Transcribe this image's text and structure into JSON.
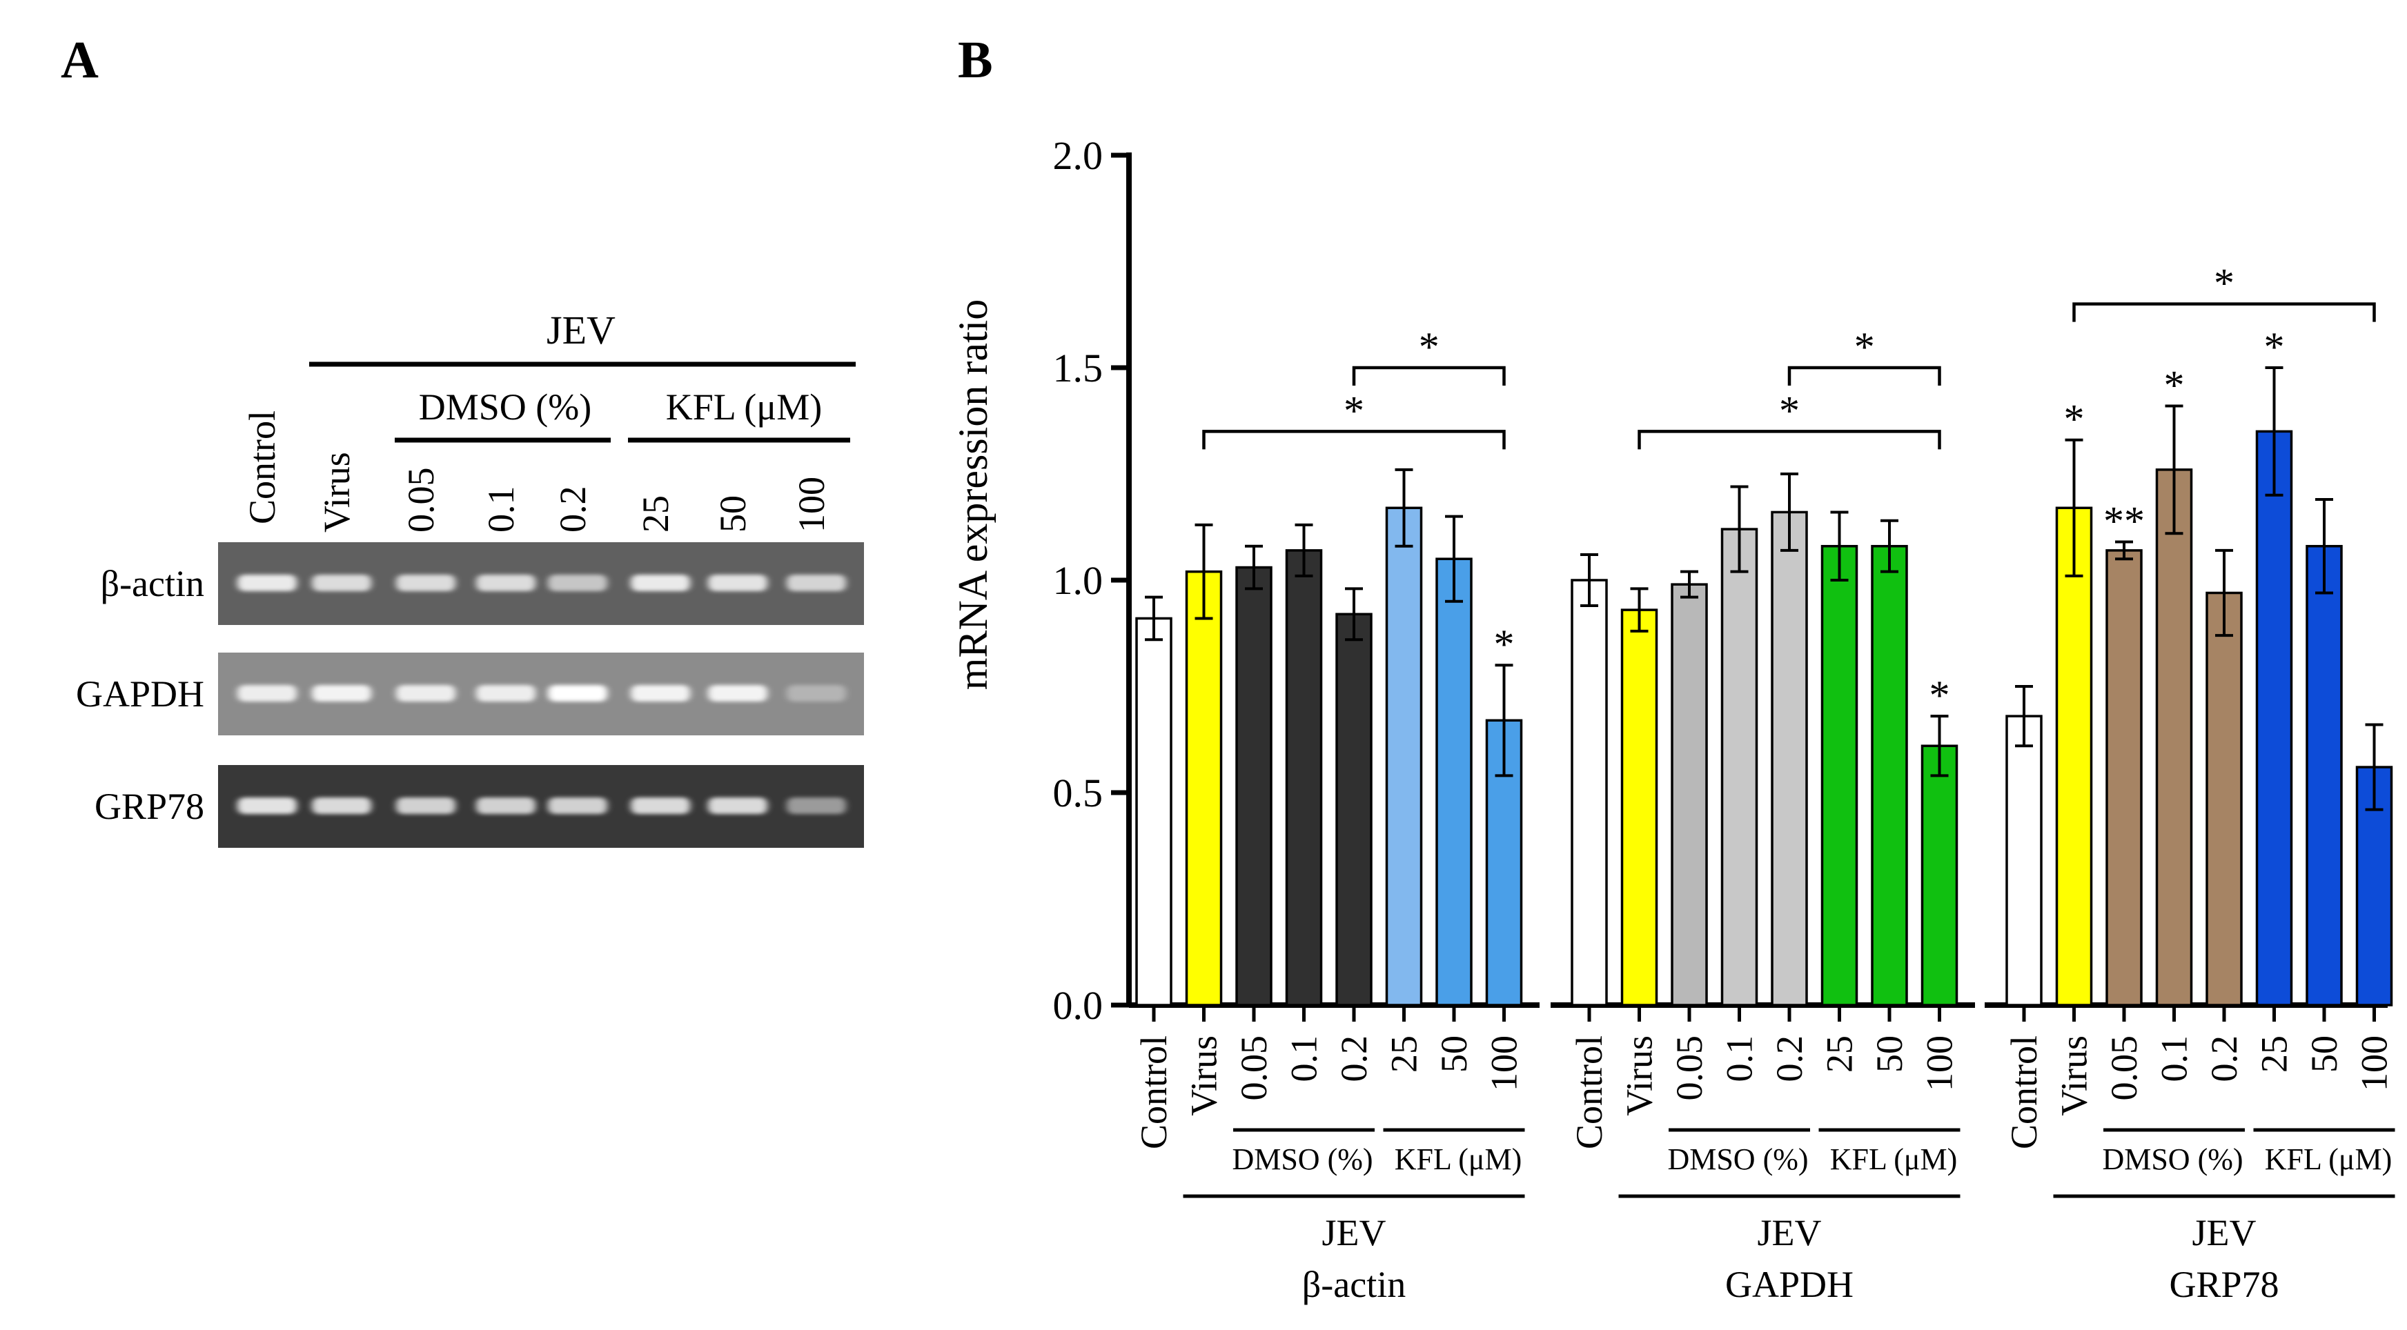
{
  "panel_a": {
    "label": "A",
    "jev": "JEV",
    "dmso": "DMSO (%)",
    "kfl": "KFL (μM)",
    "lanes": [
      "Control",
      "Virus",
      "0.05",
      "0.1",
      "0.2",
      "25",
      "50",
      "100"
    ],
    "rows": [
      {
        "label": "β-actin",
        "bg": "#606060",
        "band": "#f2f2f2",
        "intensity": [
          0.95,
          0.85,
          0.85,
          0.85,
          0.7,
          0.95,
          0.9,
          0.8
        ]
      },
      {
        "label": "GAPDH",
        "bg": "#8c8c8c",
        "band": "#ffffff",
        "intensity": [
          0.85,
          0.9,
          0.85,
          0.85,
          1.0,
          0.9,
          0.9,
          0.35
        ]
      },
      {
        "label": "GRP78",
        "bg": "#383838",
        "band": "#ececec",
        "intensity": [
          0.95,
          0.9,
          0.85,
          0.85,
          0.85,
          0.9,
          0.9,
          0.55
        ]
      }
    ]
  },
  "panel_b": {
    "label": "B",
    "chart_data": {
      "type": "bar",
      "ylabel": "mRNA expression ratio",
      "ylim": [
        0.0,
        2.0
      ],
      "yticks": [
        "0.0",
        "0.5",
        "1.0",
        "1.5",
        "2.0"
      ],
      "categories": [
        "Control",
        "Virus",
        "0.05",
        "0.1",
        "0.2",
        "25",
        "50",
        "100"
      ],
      "dmso_label": "DMSO (%)",
      "kfl_label": "KFL (μM)",
      "jev_label": "JEV",
      "groups": [
        {
          "name": "β-actin",
          "values": [
            0.91,
            1.02,
            1.03,
            1.07,
            0.92,
            1.17,
            1.05,
            0.67
          ],
          "errors": [
            0.05,
            0.11,
            0.05,
            0.06,
            0.06,
            0.09,
            0.1,
            0.13
          ],
          "colors": [
            "#ffffff",
            "#ffff00",
            "#303030",
            "#303030",
            "#303030",
            "#82b8ee",
            "#4a9fe8",
            "#4a9fe8"
          ],
          "stars": [
            "",
            "",
            "",
            "",
            "",
            "",
            "",
            "*"
          ],
          "brackets": [
            {
              "from": 1,
              "to": 7,
              "value": 1.35,
              "label": "*"
            },
            {
              "from": 4,
              "to": 7,
              "value": 1.5,
              "label": "*"
            }
          ]
        },
        {
          "name": "GAPDH",
          "values": [
            1.0,
            0.93,
            0.99,
            1.12,
            1.16,
            1.08,
            1.08,
            0.61
          ],
          "errors": [
            0.06,
            0.05,
            0.03,
            0.1,
            0.09,
            0.08,
            0.06,
            0.07
          ],
          "colors": [
            "#ffffff",
            "#ffff00",
            "#b8b8b8",
            "#c8c8c8",
            "#c8c8c8",
            "#10c010",
            "#10c010",
            "#10c010"
          ],
          "stars": [
            "",
            "",
            "",
            "",
            "",
            "",
            "",
            "*"
          ],
          "brackets": [
            {
              "from": 1,
              "to": 7,
              "value": 1.35,
              "label": "*"
            },
            {
              "from": 4,
              "to": 7,
              "value": 1.5,
              "label": "*"
            }
          ]
        },
        {
          "name": "GRP78",
          "values": [
            0.68,
            1.17,
            1.07,
            1.26,
            0.97,
            1.35,
            1.08,
            0.56
          ],
          "errors": [
            0.07,
            0.16,
            0.02,
            0.15,
            0.1,
            0.15,
            0.11,
            0.1
          ],
          "colors": [
            "#ffffff",
            "#ffff00",
            "#a68464",
            "#a68464",
            "#a68464",
            "#0d4cd8",
            "#0d4cd8",
            "#0d4cd8"
          ],
          "stars": [
            "",
            "*",
            "**",
            "*",
            "",
            "*",
            "",
            ""
          ],
          "brackets": [
            {
              "from": 1,
              "to": 7,
              "value": 1.65,
              "label": "*"
            }
          ]
        }
      ]
    }
  }
}
